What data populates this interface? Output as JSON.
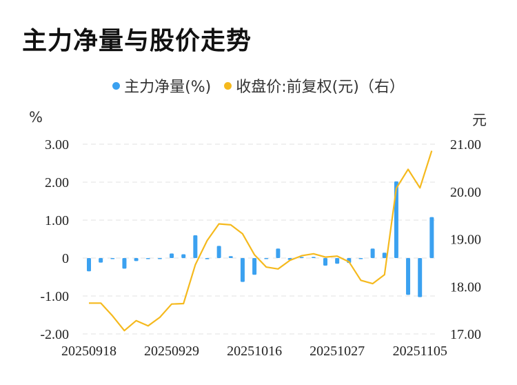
{
  "title": "主力净量与股价走势",
  "legend": {
    "bar_label": "主力净量(%)",
    "line_label": "收盘价:前复权(元)（右）"
  },
  "units": {
    "left": "%",
    "right": "元"
  },
  "colors": {
    "bar": "#3ba1f0",
    "line": "#f5b91d",
    "grid": "#e6e6e6"
  },
  "chart_data": {
    "type": "bar+line",
    "title": "主力净量与股价走势",
    "x_tick_labels": [
      "20250918",
      "20250929",
      "20251016",
      "20251027",
      "20251105"
    ],
    "x_tick_indices": [
      0,
      7,
      14,
      21,
      28
    ],
    "left_axis": {
      "unit": "%",
      "ylim": [
        -2,
        3
      ],
      "ticks": [
        3,
        2,
        1,
        0,
        -1,
        -2
      ],
      "tick_labels": [
        "3.00",
        "2.00",
        "1.00",
        "0",
        "-1.00",
        "-2.00"
      ]
    },
    "right_axis": {
      "unit": "元",
      "ylim": [
        17,
        21
      ],
      "ticks": [
        21,
        20,
        19,
        18,
        17
      ],
      "tick_labels": [
        "21.00",
        "20.00",
        "19.00",
        "18.00",
        "17.00"
      ]
    },
    "grid": true,
    "legend_position": "top-center",
    "series": [
      {
        "name": "主力净量(%)",
        "type": "bar",
        "values": [
          -0.35,
          -0.12,
          -0.02,
          -0.28,
          -0.08,
          -0.02,
          -0.02,
          0.12,
          0.1,
          0.6,
          -0.03,
          0.32,
          0.05,
          -0.63,
          -0.44,
          -0.02,
          0.25,
          -0.05,
          0.03,
          0.03,
          -0.2,
          -0.15,
          -0.13,
          -0.02,
          0.25,
          0.14,
          2.02,
          -0.97,
          -1.03,
          1.08
        ]
      },
      {
        "name": "收盘价:前复权(元)（右）",
        "type": "line",
        "values": [
          17.65,
          17.65,
          17.38,
          17.07,
          17.28,
          17.17,
          17.35,
          17.63,
          17.64,
          18.46,
          18.97,
          19.32,
          19.3,
          19.11,
          18.67,
          18.41,
          18.37,
          18.55,
          18.65,
          18.69,
          18.62,
          18.64,
          18.52,
          18.13,
          18.06,
          18.25,
          20.07,
          20.47,
          20.08,
          20.86
        ]
      }
    ]
  }
}
